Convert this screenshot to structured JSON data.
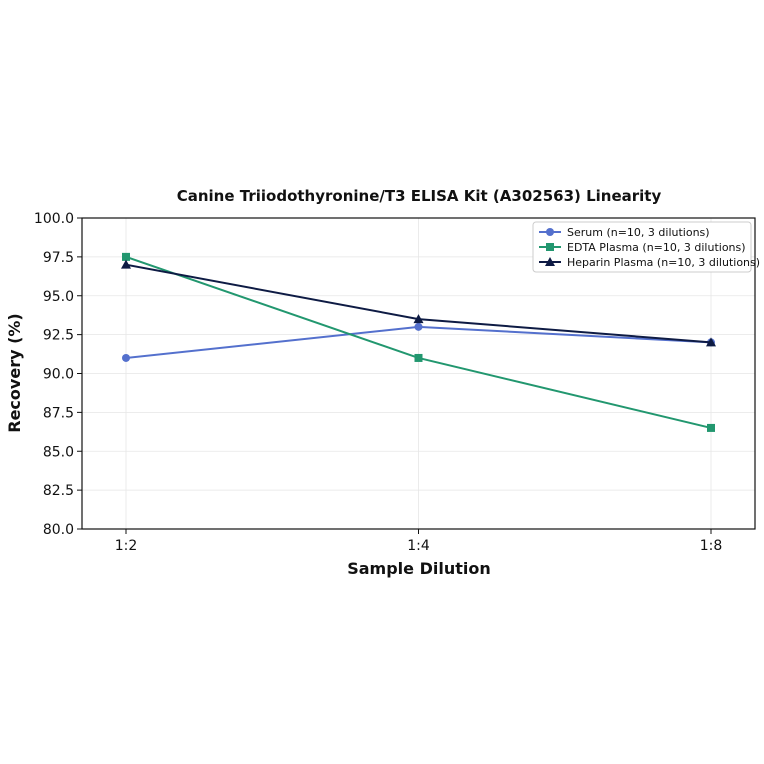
{
  "chart_data": {
    "type": "line",
    "title": "Canine Triiodothyronine/T3 ELISA Kit (A302563) Linearity",
    "xlabel": "Sample Dilution",
    "ylabel": "Recovery (%)",
    "categories": [
      "1:2",
      "1:4",
      "1:8"
    ],
    "ylim": [
      80.0,
      100.0
    ],
    "yticks": [
      "80.0",
      "82.5",
      "85.0",
      "87.5",
      "90.0",
      "92.5",
      "95.0",
      "97.5",
      "100.0"
    ],
    "grid": true,
    "legend_position": "top-right",
    "series": [
      {
        "name": "Serum (n=10, 3 dilutions)",
        "values": [
          91.0,
          93.0,
          92.0
        ],
        "color": "#5470cd",
        "marker": "circle"
      },
      {
        "name": "EDTA Plasma (n=10, 3 dilutions)",
        "values": [
          97.5,
          91.0,
          86.5
        ],
        "color": "#22976f",
        "marker": "square"
      },
      {
        "name": "Heparin Plasma (n=10, 3 dilutions)",
        "values": [
          97.0,
          93.5,
          92.0
        ],
        "color": "#0e1b44",
        "marker": "triangle"
      }
    ]
  }
}
